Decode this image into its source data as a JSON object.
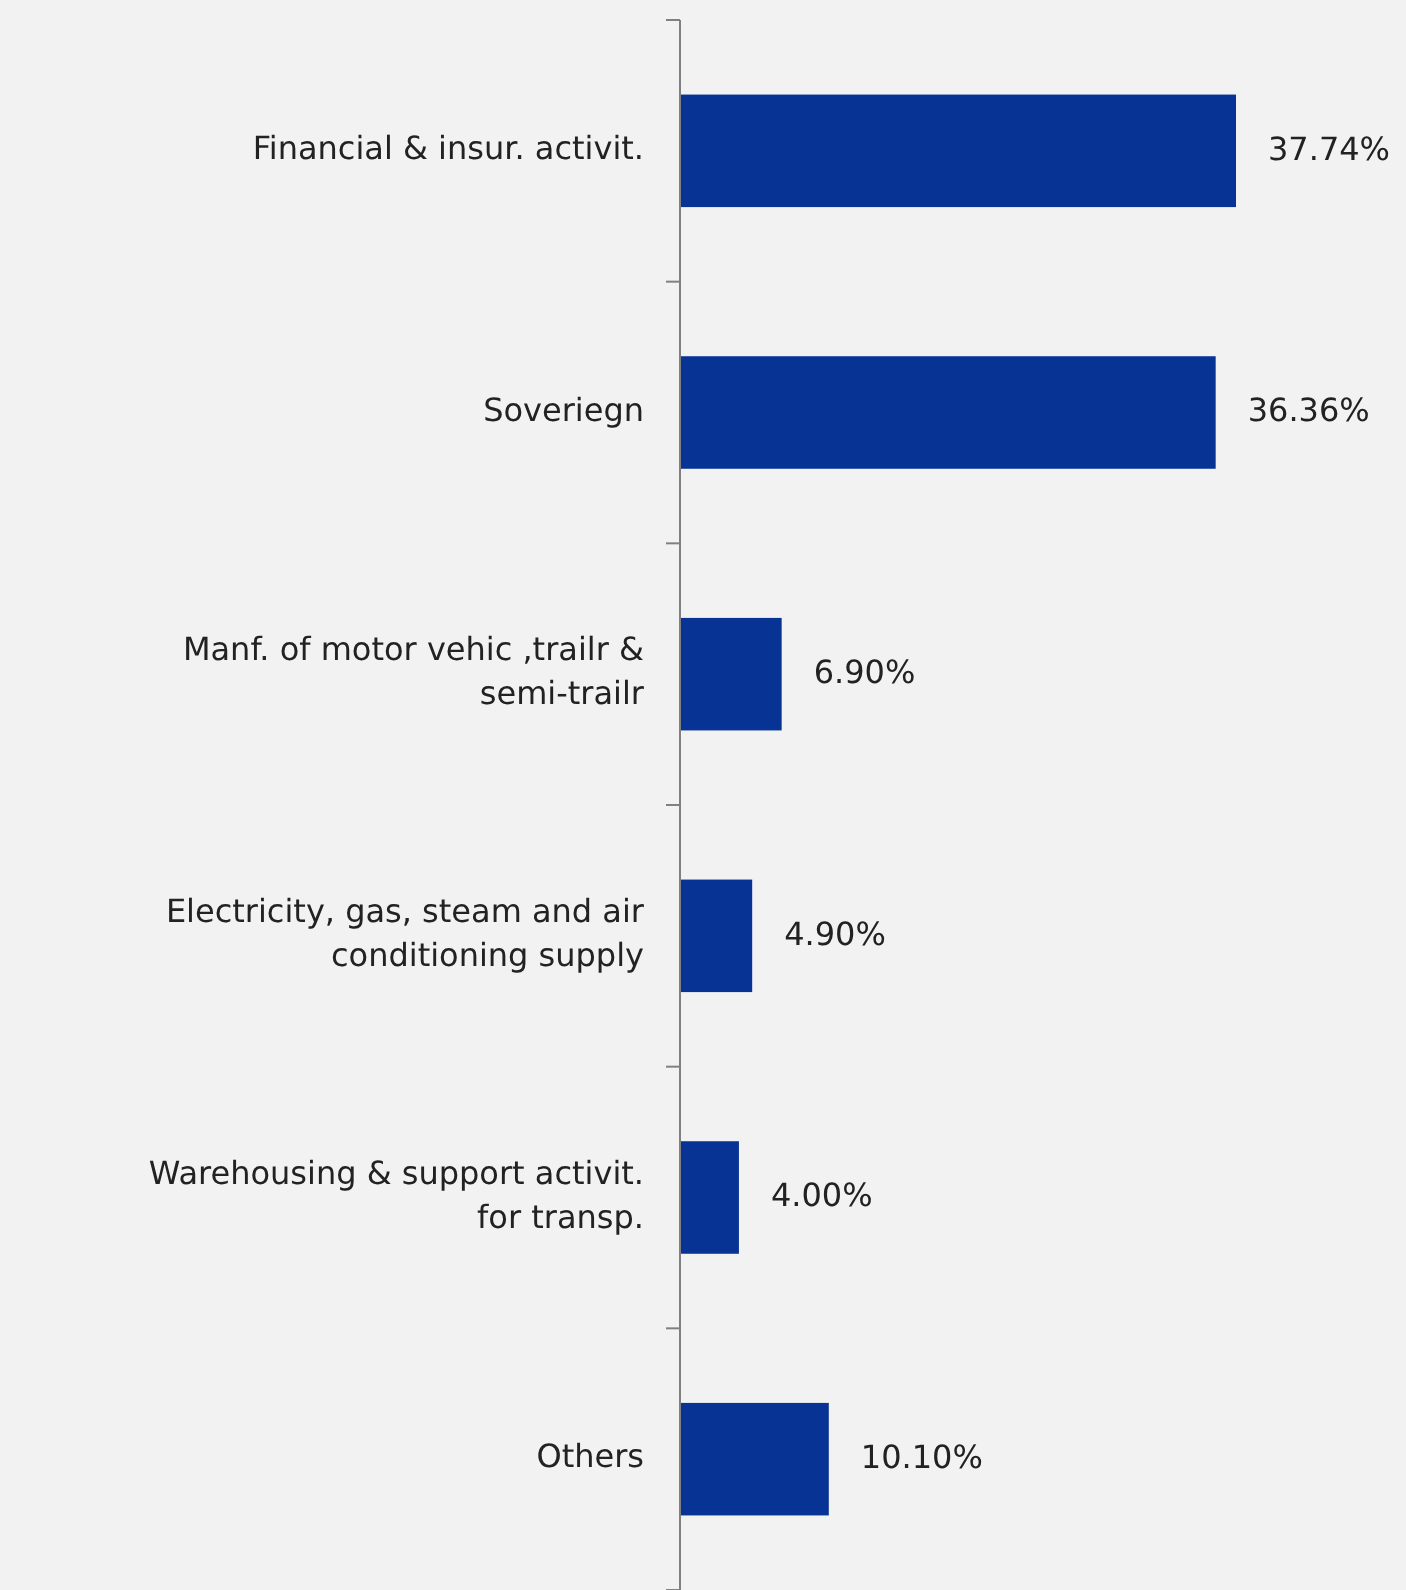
{
  "chart_data": {
    "type": "bar",
    "orientation": "horizontal",
    "categories": [
      "Financial & insur. activit.",
      "Soveriegn",
      "Manf. of motor vehic ,trailr & semi-trailr",
      "Electricity, gas, steam and air conditioning supply",
      "Warehousing & support activit. for transp.",
      "Others"
    ],
    "values": [
      37.74,
      36.36,
      6.9,
      4.9,
      4.0,
      10.1
    ],
    "value_labels": [
      "37.74%",
      "36.36%",
      "6.90%",
      "4.90%",
      "4.00%",
      "10.10%"
    ],
    "color": "#063394"
  }
}
